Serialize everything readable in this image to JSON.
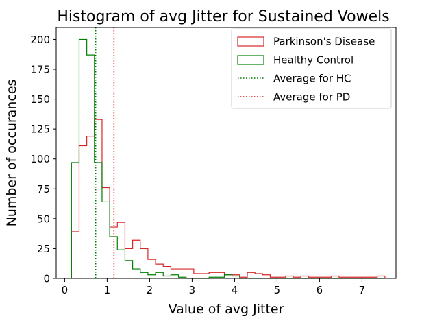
{
  "chart_data": {
    "type": "histogram",
    "title": "Histogram of avg Jitter for Sustained Vowels",
    "xlabel": "Value of avg Jitter",
    "ylabel": "Number of occurances",
    "xlim": [
      -0.2,
      7.8
    ],
    "ylim": [
      0,
      210
    ],
    "xticks": [
      0,
      1,
      2,
      3,
      4,
      5,
      6,
      7
    ],
    "yticks": [
      0,
      25,
      50,
      75,
      100,
      125,
      150,
      175,
      200
    ],
    "grid": false,
    "legend_position": "top-right",
    "bin_edges": [
      0.16,
      0.34,
      0.52,
      0.7,
      0.88,
      1.06,
      1.24,
      1.42,
      1.6,
      1.78,
      1.96,
      2.14,
      2.32,
      2.5,
      2.68,
      2.86,
      3.04,
      3.22,
      3.4,
      3.58,
      3.76,
      3.94,
      4.12,
      4.3,
      4.48,
      4.66,
      4.84,
      5.02,
      5.2,
      5.38,
      5.56,
      5.74,
      5.92,
      6.1,
      6.28,
      6.46,
      6.64,
      6.82,
      7.0,
      7.18,
      7.36,
      7.54
    ],
    "series": [
      {
        "name": "Parkinson's Disease",
        "color": "#d62728",
        "style": "step",
        "values": [
          39,
          111,
          119,
          133,
          76,
          43,
          47,
          25,
          32,
          25,
          16,
          12,
          10,
          8,
          8,
          8,
          4,
          4,
          5,
          5,
          3,
          3,
          1,
          5,
          4,
          3,
          1,
          1,
          2,
          1,
          2,
          1,
          1,
          1,
          2,
          1,
          1,
          1,
          1,
          1,
          2
        ]
      },
      {
        "name": "Healthy Control",
        "color": "#007f00",
        "style": "step",
        "values": [
          97,
          200,
          187,
          97,
          64,
          35,
          24,
          15,
          8,
          5,
          3,
          5,
          2,
          3,
          1,
          0,
          0,
          0,
          1,
          1,
          3,
          2,
          0,
          0,
          0,
          0,
          0,
          0,
          0,
          0,
          0,
          0,
          0,
          0,
          0,
          0,
          0,
          0,
          0,
          0,
          0
        ]
      }
    ],
    "reference_lines": [
      {
        "name": "Average for HC",
        "x": 0.73,
        "color": "#007f00",
        "style": "dotted"
      },
      {
        "name": "Average for PD",
        "x": 1.16,
        "color": "#d62728",
        "style": "dotted"
      }
    ]
  }
}
